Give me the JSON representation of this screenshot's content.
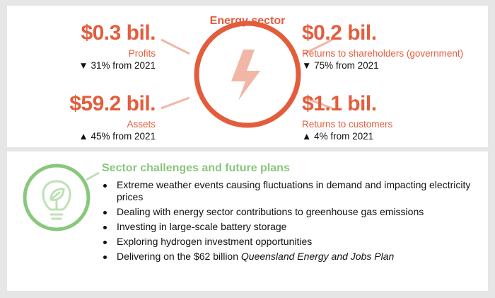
{
  "energy": {
    "title": "Energy sector",
    "profits": {
      "value": "$0.3 bil.",
      "label": "Profits",
      "change": "▼ 31% from 2021"
    },
    "returns_shareholders": {
      "value": "$0.2 bil.",
      "label": "Returns to shareholders (government)",
      "change": "▼ 75% from 2021"
    },
    "assets": {
      "value": "$59.2 bil.",
      "label": "Assets",
      "change": "▲ 45% from 2021"
    },
    "returns_customers": {
      "value": "$1.1 bil.",
      "label": "Returns to customers",
      "change": "▲ 4% from 2021"
    }
  },
  "challenges": {
    "title": "Sector challenges and future plans",
    "items": [
      "Extreme weather events causing fluctuations in demand and impacting electricity prices",
      "Dealing with energy sector contributions to greenhouse gas emissions",
      "Investing in large-scale battery storage",
      "Exploring hydrogen investment opportunities"
    ],
    "last_item_prefix": "Delivering on the $62 billion ",
    "last_item_italic": "Queensland Energy and Jobs Plan"
  },
  "colors": {
    "accent": "#e35d3d",
    "accent_light": "#f2b6a6",
    "green": "#8ac77d",
    "green_light": "#bfe0b6",
    "background": "#e6e6e6"
  },
  "icons": [
    "lightning-bolt-icon",
    "lightbulb-leaf-icon"
  ]
}
